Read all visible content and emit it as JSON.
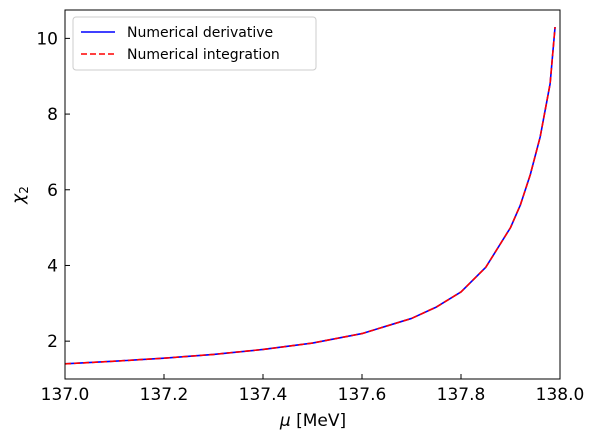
{
  "chart_data": {
    "type": "line",
    "xlabel_symbol": "μ",
    "xlabel_unit": "[MeV]",
    "ylabel_symbol": "χ",
    "ylabel_subscript": "2",
    "xlim": [
      137.0,
      138.0
    ],
    "ylim": [
      1.0,
      10.75
    ],
    "x_ticks": [
      137.0,
      137.2,
      137.4,
      137.6,
      137.8,
      138.0
    ],
    "x_tick_labels": [
      "137.0",
      "137.2",
      "137.4",
      "137.6",
      "137.8",
      "138.0"
    ],
    "y_ticks": [
      2,
      4,
      6,
      8,
      10
    ],
    "y_tick_labels": [
      "2",
      "4",
      "6",
      "8",
      "10"
    ],
    "grid": false,
    "legend_position": "top-left",
    "x": [
      137.0,
      137.1,
      137.2,
      137.3,
      137.4,
      137.5,
      137.6,
      137.7,
      137.75,
      137.8,
      137.85,
      137.9,
      137.92,
      137.94,
      137.96,
      137.98,
      137.99
    ],
    "series": [
      {
        "name": "Numerical derivative",
        "color": "#0000ff",
        "style": "solid",
        "values": [
          1.4,
          1.47,
          1.55,
          1.65,
          1.78,
          1.95,
          2.2,
          2.6,
          2.9,
          3.3,
          3.95,
          5.0,
          5.6,
          6.4,
          7.4,
          8.8,
          10.3
        ]
      },
      {
        "name": "Numerical integration",
        "color": "#ff0000",
        "style": "dashed",
        "values": [
          1.4,
          1.47,
          1.55,
          1.65,
          1.78,
          1.95,
          2.2,
          2.6,
          2.9,
          3.3,
          3.95,
          5.0,
          5.6,
          6.4,
          7.4,
          8.8,
          10.3
        ]
      }
    ]
  }
}
